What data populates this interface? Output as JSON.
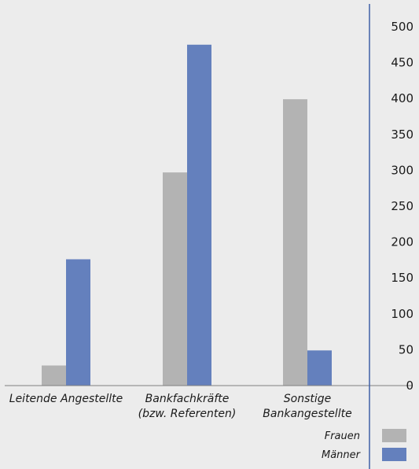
{
  "chart_data": {
    "type": "bar",
    "categories": [
      [
        "Leitende Angestellte"
      ],
      [
        "Bankfachkräfte",
        "(bzw. Referenten)"
      ],
      [
        "Sonstige",
        "Bankangestellte"
      ]
    ],
    "series": [
      {
        "name": "Frauen",
        "values": [
          28,
          297,
          399
        ],
        "color": "#b3b3b3"
      },
      {
        "name": "Männer",
        "values": [
          176,
          475,
          49
        ],
        "color": "#6480bd"
      }
    ],
    "y_ticks": [
      "0",
      "50",
      "100",
      "150",
      "200",
      "250",
      "300",
      "350",
      "400",
      "450",
      "500"
    ],
    "ylim": [
      0,
      500
    ],
    "y_axis_side": "right",
    "legend_position": "bottom-right",
    "grid": false,
    "colors": {
      "background": "#ececec",
      "axis": "#3f60a6",
      "baseline": "#7f7f7f"
    }
  }
}
